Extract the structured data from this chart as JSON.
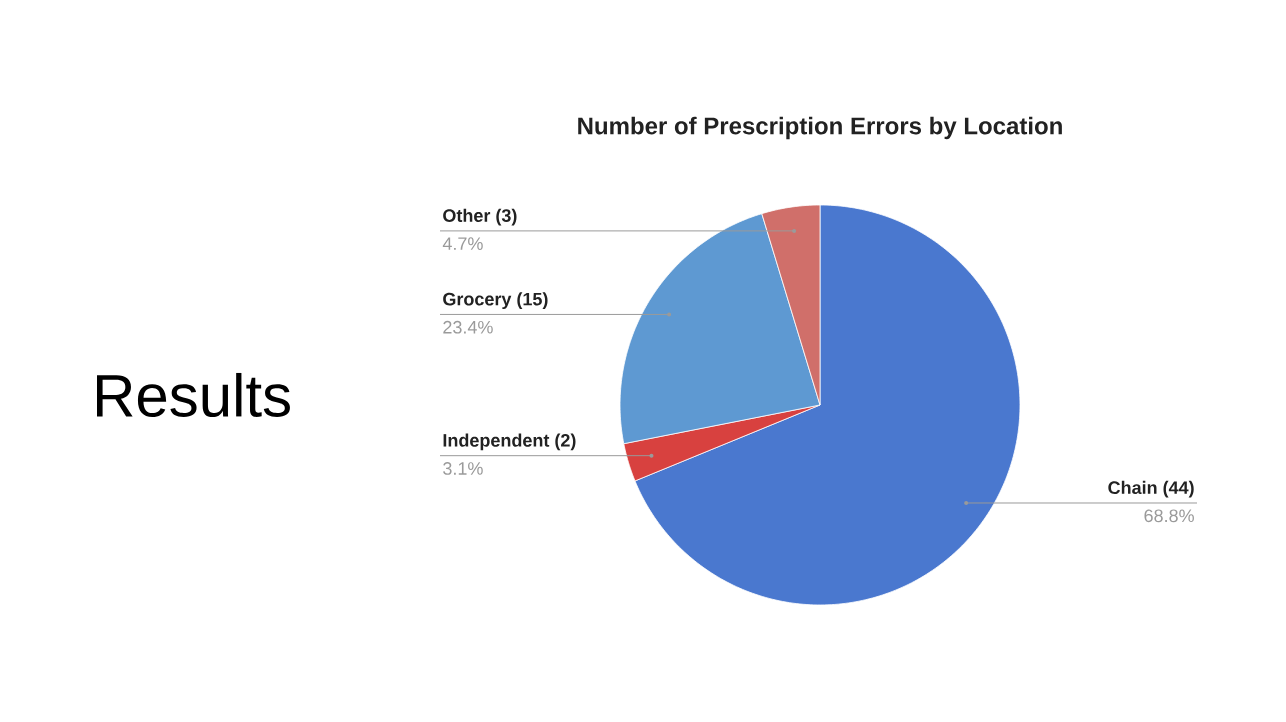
{
  "chart_data": {
    "type": "pie",
    "title": "Number of Prescription Errors by Location",
    "categories": [
      "Chain (44)",
      "Independent (2)",
      "Grocery (15)",
      "Other (3)"
    ],
    "values": [
      68.8,
      3.1,
      23.4,
      4.7
    ],
    "value_labels": [
      "68.8%",
      "3.1%",
      "23.4%",
      "4.7%"
    ],
    "colors": [
      "#4a78cf",
      "#d8413f",
      "#5e99d2",
      "#d06f6a"
    ],
    "annotations": [
      "Results"
    ]
  }
}
